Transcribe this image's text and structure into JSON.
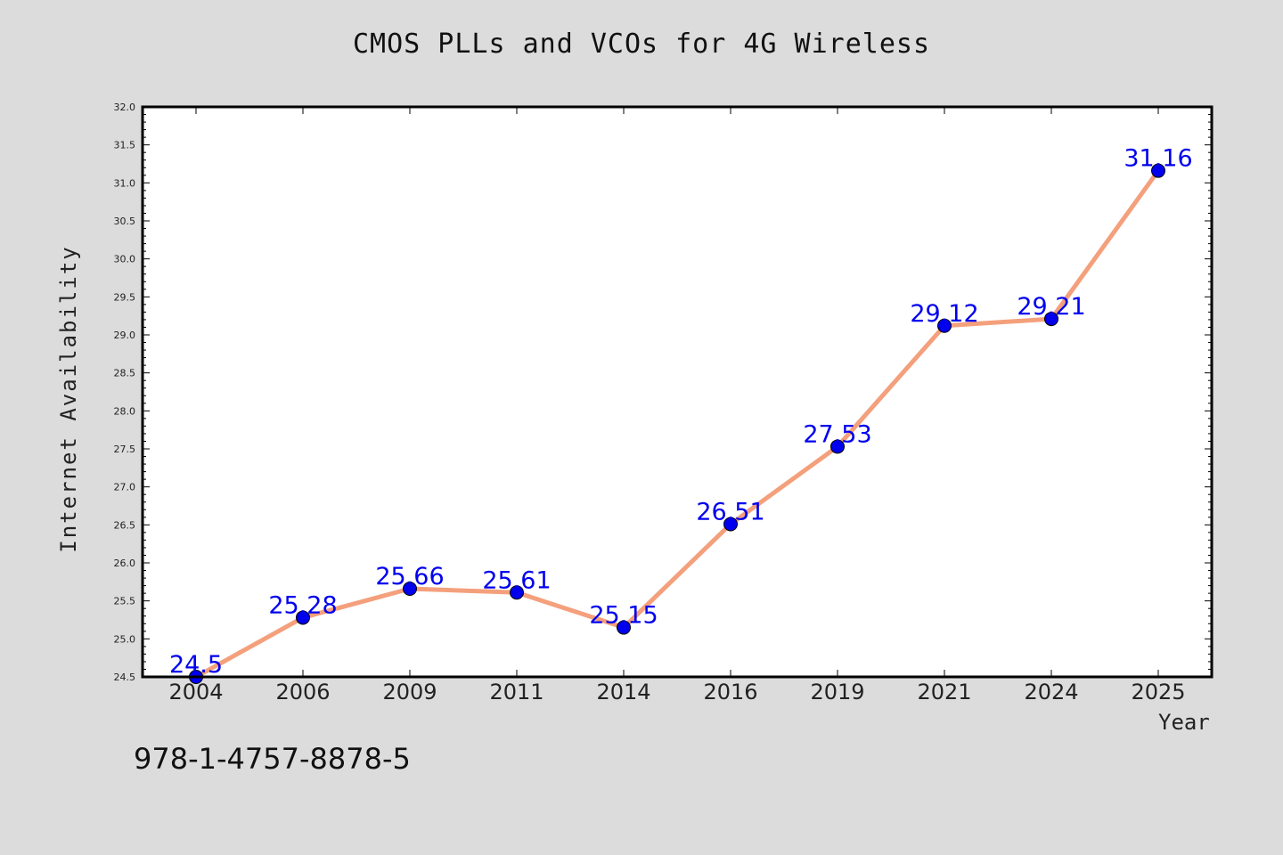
{
  "chart_data": {
    "type": "line",
    "title": "CMOS PLLs and VCOs for 4G Wireless",
    "xlabel": "Year",
    "ylabel": "Internet Availability",
    "categories": [
      "2004",
      "2006",
      "2009",
      "2011",
      "2014",
      "2016",
      "2019",
      "2021",
      "2024",
      "2025"
    ],
    "series": [
      {
        "values": [
          24.5,
          25.28,
          25.66,
          25.61,
          25.15,
          26.51,
          27.53,
          29.12,
          29.21,
          31.16
        ],
        "labels": [
          "24.5",
          "25.28",
          "25.66",
          "25.61",
          "25.15",
          "26.51",
          "27.53",
          "29.12",
          "29.21",
          "31.16"
        ],
        "line_color": "#f4a07c",
        "marker_color": "#0000ee"
      }
    ],
    "ylim": [
      24.5,
      32.0
    ],
    "yticks": [
      "24.5",
      "25.0",
      "25.5",
      "26.0",
      "26.5",
      "27.0",
      "27.5",
      "28.0",
      "28.5",
      "29.0",
      "29.5",
      "30.0",
      "30.5",
      "31.0",
      "31.5",
      "32.0"
    ],
    "grid": false,
    "legend": "none"
  },
  "footer": {
    "isbn": "978-1-4757-8878-5"
  }
}
